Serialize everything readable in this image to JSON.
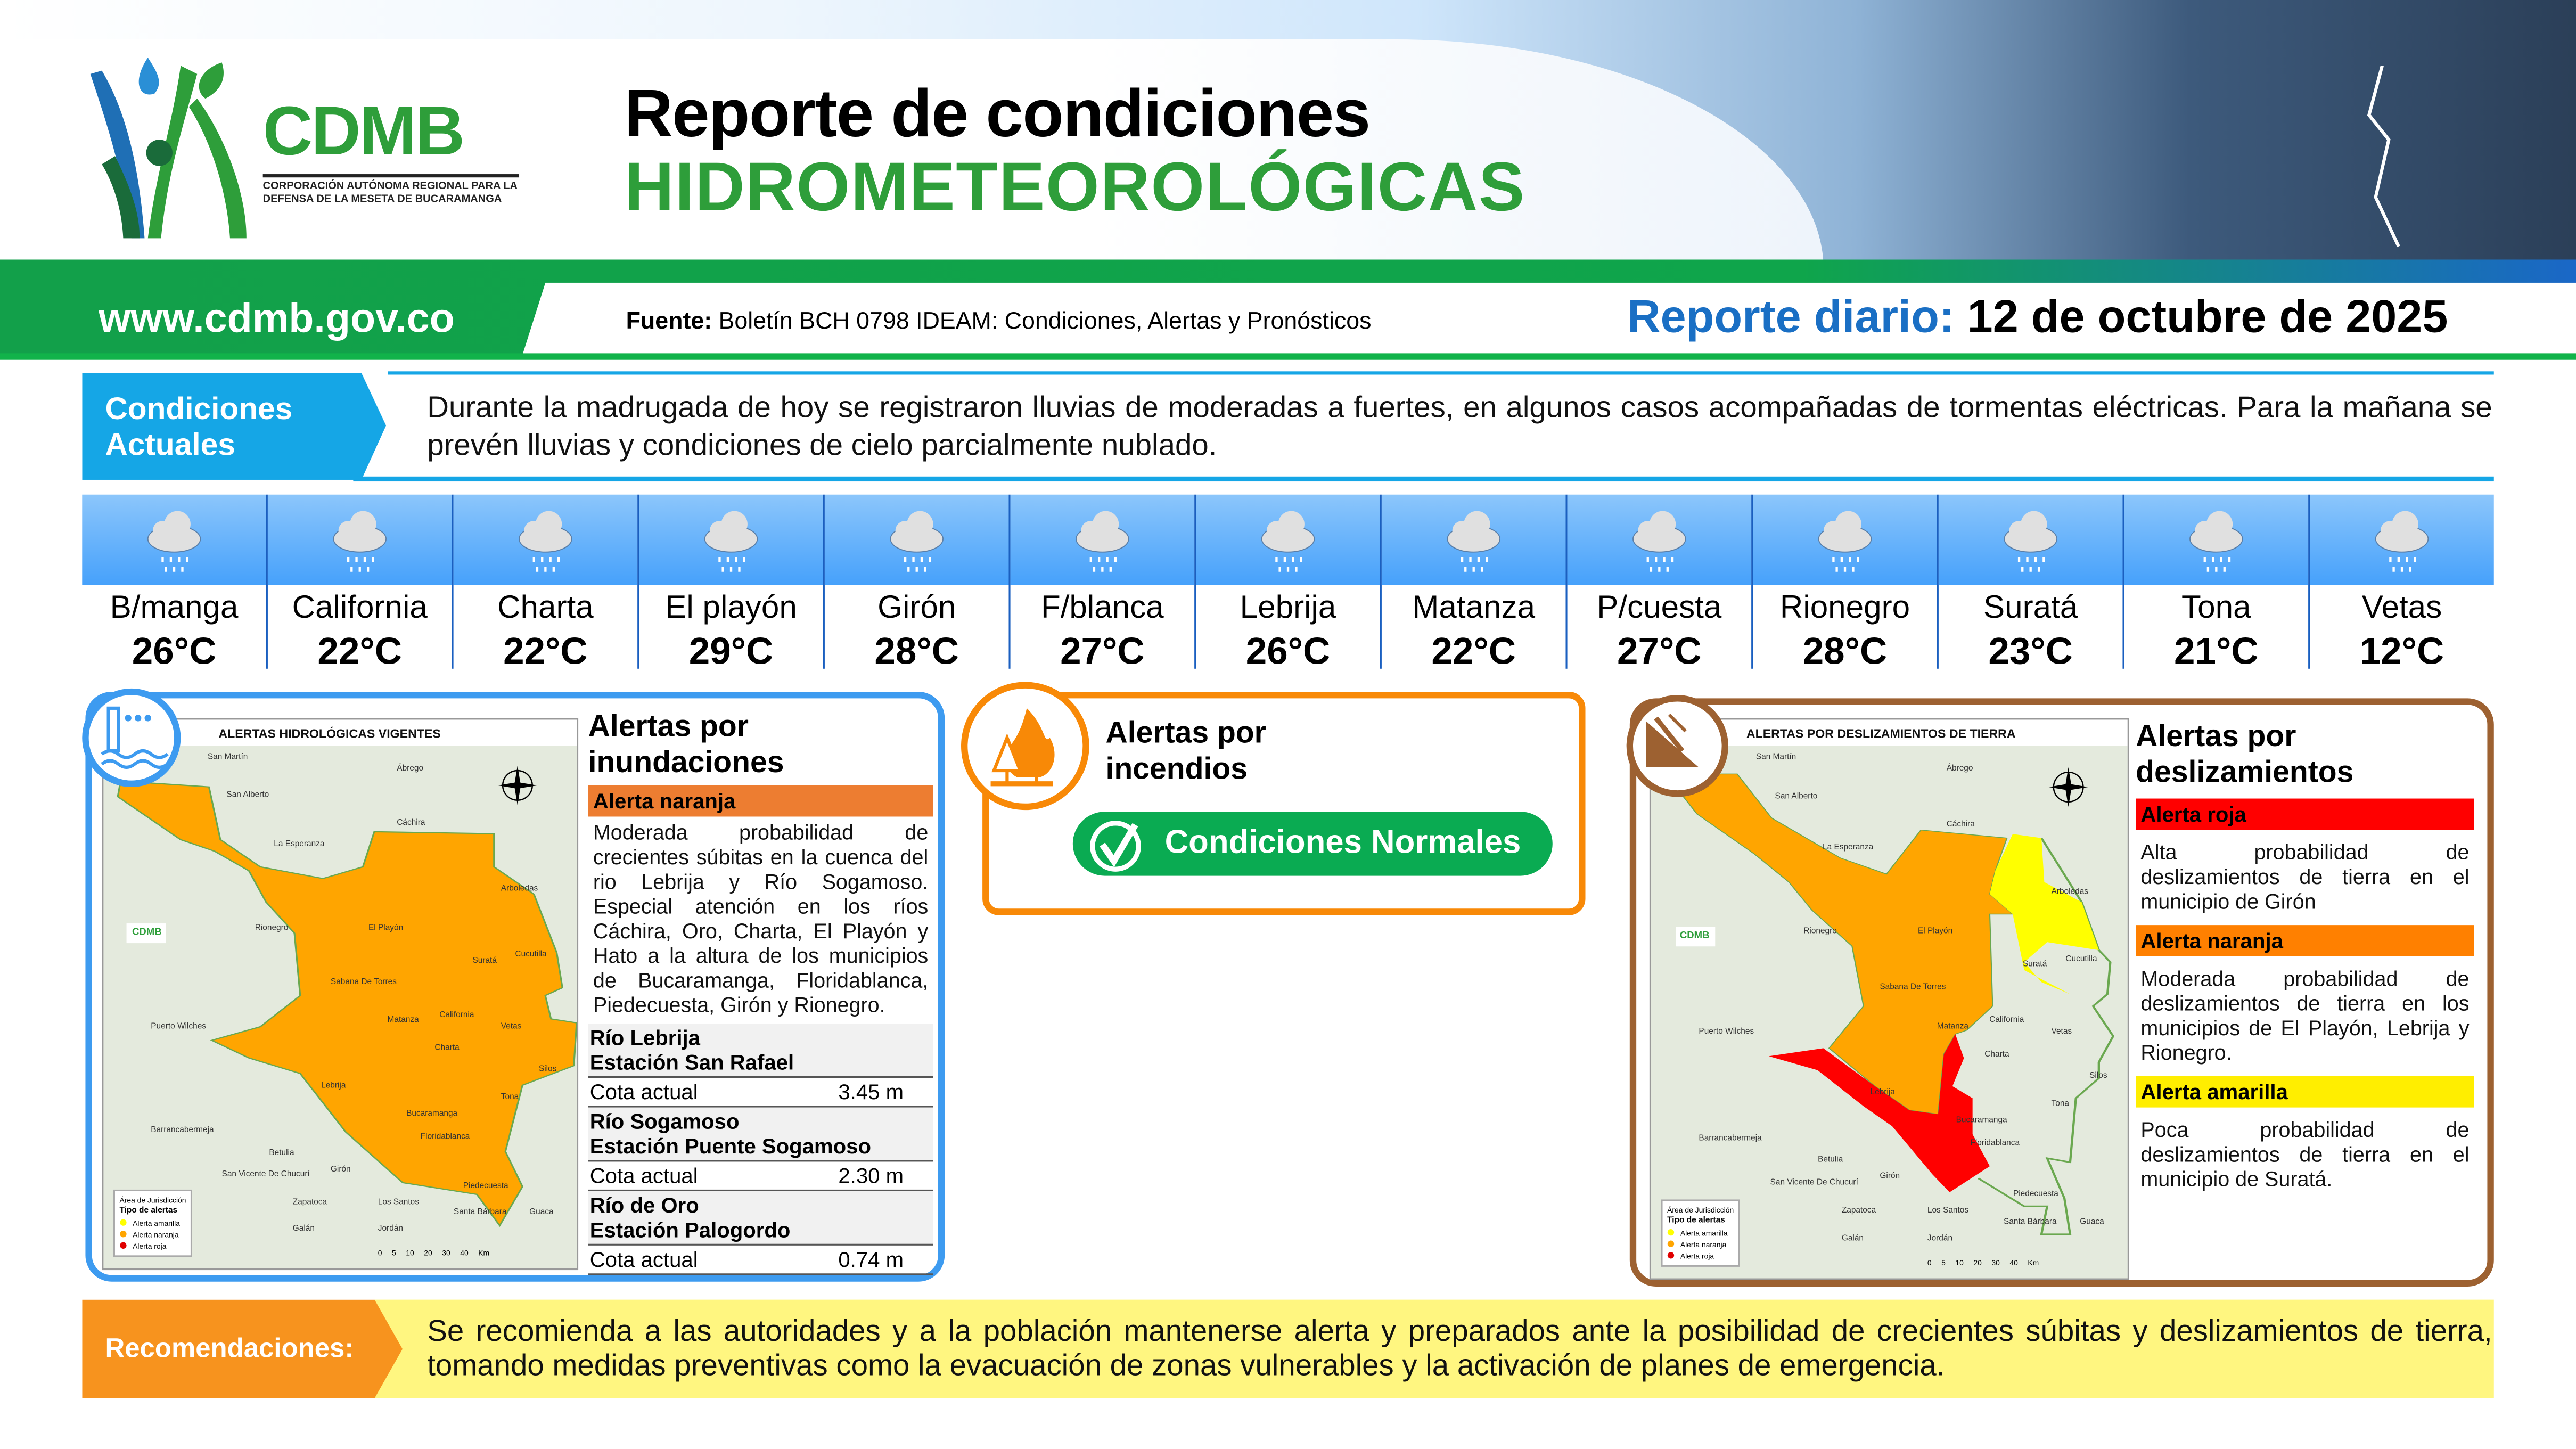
{
  "header": {
    "logo_text": "CDMB",
    "logo_subtitle": "CORPORACIÓN AUTÓNOMA REGIONAL PARA LA DEFENSA DE LA MESETA DE BUCARAMANGA",
    "title_line1": "Reporte de condiciones",
    "title_line2": "HIDROMETEOROLÓGICAS",
    "website": "www.cdmb.gov.co",
    "source_label": "Fuente:",
    "source_text": "Boletín BCH 0798 IDEAM: Condiciones, Alertas y Pronósticos",
    "report_label": "Reporte diario:",
    "report_date": "12 de octubre de 2025"
  },
  "conditions": {
    "label": "Condiciones Actuales",
    "text": "Durante la madrugada de hoy se registraron lluvias de moderadas a fuertes, en algunos casos acompañadas de tormentas eléctricas. Para la mañana se prevén lluvias y condiciones de cielo parcialmente nublado."
  },
  "weather": [
    {
      "name": "B/manga",
      "temp": "26°C",
      "icon": "rain-cloud-icon"
    },
    {
      "name": "California",
      "temp": "22°C",
      "icon": "rain-cloud-icon"
    },
    {
      "name": "Charta",
      "temp": "22°C",
      "icon": "rain-cloud-icon"
    },
    {
      "name": "El playón",
      "temp": "29°C",
      "icon": "rain-cloud-icon"
    },
    {
      "name": "Girón",
      "temp": "28°C",
      "icon": "rain-cloud-icon"
    },
    {
      "name": "F/blanca",
      "temp": "27°C",
      "icon": "rain-cloud-icon"
    },
    {
      "name": "Lebrija",
      "temp": "26°C",
      "icon": "rain-cloud-icon"
    },
    {
      "name": "Matanza",
      "temp": "22°C",
      "icon": "rain-cloud-icon"
    },
    {
      "name": "P/cuesta",
      "temp": "27°C",
      "icon": "rain-cloud-icon"
    },
    {
      "name": "Rionegro",
      "temp": "28°C",
      "icon": "rain-cloud-icon"
    },
    {
      "name": "Suratá",
      "temp": "23°C",
      "icon": "rain-cloud-icon"
    },
    {
      "name": "Tona",
      "temp": "21°C",
      "icon": "rain-cloud-icon"
    },
    {
      "name": "Vetas",
      "temp": "12°C",
      "icon": "rain-cloud-icon"
    }
  ],
  "floods": {
    "title": "Alertas por inundaciones",
    "map_title": "ALERTAS HIDROLÓGICAS VIGENTES",
    "alert_label": "Alerta naranja",
    "alert_color": "#ED7D31",
    "description": "Moderada probabilidad de crecientes súbitas en la cuenca del rio Lebrija y Río Sogamoso. Especial atención en los ríos Cáchira, Oro, Charta, El Playón y Hato a la altura de los municipios de Bucaramanga, Floridablanca, Piedecuesta, Girón y Rionegro.",
    "stations": [
      {
        "river": "Río Lebrija",
        "station": "Estación San Rafael",
        "cota_label": "Cota actual",
        "cota": "3.45 m"
      },
      {
        "river": "Río Sogamoso",
        "station": "Estación Puente Sogamoso",
        "cota_label": "Cota actual",
        "cota": "2.30 m"
      },
      {
        "river": "Río de Oro",
        "station": "Estación Palogordo",
        "cota_label": "Cota actual",
        "cota": "0.74 m"
      }
    ]
  },
  "fires": {
    "title": "Alertas por incendios",
    "status": "Condiciones Normales",
    "status_color": "#0AAB52"
  },
  "landslides": {
    "title": "Alertas por deslizamientos",
    "map_title": "ALERTAS POR DESLIZAMIENTOS DE TIERRA",
    "alerts": [
      {
        "label": "Alerta roja",
        "color": "#FF0000",
        "text": "Alta probabilidad de deslizamientos de tierra en el municipio de Girón"
      },
      {
        "label": "Alerta naranja",
        "color": "#FF8000",
        "text": "Moderada probabilidad de deslizamientos de tierra en los municipios de El Playón, Lebrija y Rionegro."
      },
      {
        "label": "Alerta amarilla",
        "color": "#FFEE00",
        "text": "Poca probabilidad de deslizamientos de tierra en el municipio de Suratá."
      }
    ]
  },
  "map_common": {
    "places": [
      "San Martín",
      "San Alberto",
      "Ábrego",
      "Cáchira",
      "La Esperanza",
      "Arboledas",
      "Rionegro",
      "El Playón",
      "Suratá",
      "Cucutilla",
      "Sabana De Torres",
      "Puerto Wilches",
      "Matanza",
      "California",
      "Vetas",
      "Charta",
      "Silos",
      "Lebrija",
      "Tona",
      "Bucaramanga",
      "Barrancabermeja",
      "Floridablanca",
      "Betulia",
      "Girón",
      "Piedecuesta",
      "Santa Bárbara",
      "Guaca",
      "San Vicente De Chucurí",
      "Zapatoca",
      "Los Santos",
      "Galán",
      "Jordán"
    ],
    "compass": [
      "N",
      "S",
      "E",
      "W"
    ],
    "legend_area": "Área de Jurisdicción",
    "legend_title": "Tipo de alertas",
    "legend_items": [
      {
        "label": "Alerta amarilla",
        "color": "#FFFF00"
      },
      {
        "label": "Alerta naranja",
        "color": "#FFA500"
      },
      {
        "label": "Alerta roja",
        "color": "#E00000"
      }
    ],
    "scale_km": "Km",
    "scale_ticks": [
      "0",
      "5",
      "10",
      "20",
      "30",
      "40"
    ]
  },
  "recommendations": {
    "label": "Recomendaciones:",
    "text": "Se recomienda a las autoridades y a la población mantenerse alerta y preparados ante la posibilidad de crecientes súbitas y deslizamientos de tierra, tomando medidas preventivas como la evacuación de zonas vulnerables y la activación de planes de emergencia."
  }
}
